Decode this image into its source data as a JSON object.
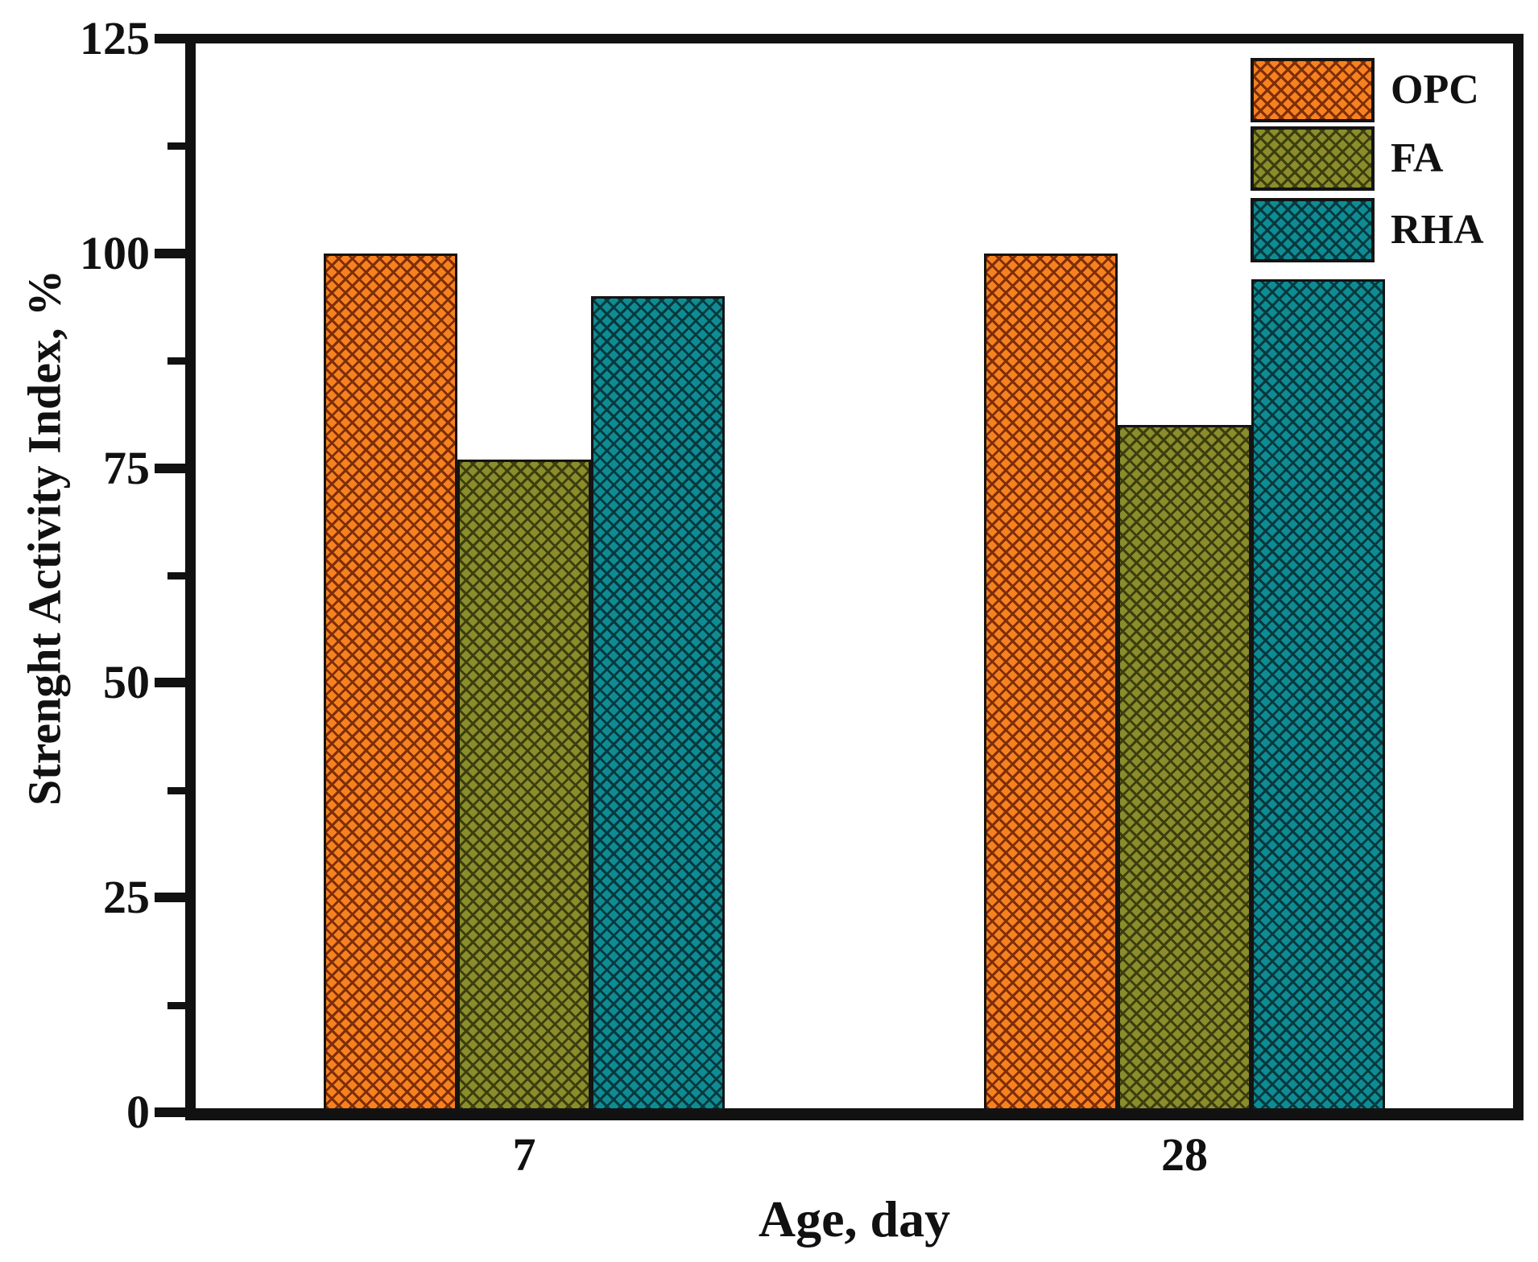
{
  "chart_data": {
    "type": "bar",
    "title": "",
    "xlabel": "Age, day",
    "ylabel": "Strenght Activity Index, %",
    "categories": [
      "7",
      "28"
    ],
    "series": [
      {
        "name": "OPC",
        "values": [
          100,
          100
        ],
        "fill": "#F6821F",
        "hatch": "#7E2D08"
      },
      {
        "name": "FA",
        "values": [
          76,
          80
        ],
        "fill": "#8B8D2C",
        "hatch": "#3C3E0E"
      },
      {
        "name": "RHA",
        "values": [
          95,
          97
        ],
        "fill": "#0F8C93",
        "hatch": "#06393E"
      }
    ],
    "ylim": [
      0,
      125
    ],
    "yticks": [
      0,
      25,
      50,
      75,
      100,
      125
    ],
    "yticks_minor": [
      12.5,
      37.5,
      62.5,
      87.5,
      112.5
    ],
    "legend_position": "top-right",
    "grid": false,
    "bar_pattern": "diagonal-crosshatch",
    "axis_color": "#111111",
    "background_color": "#FFFFFF"
  }
}
